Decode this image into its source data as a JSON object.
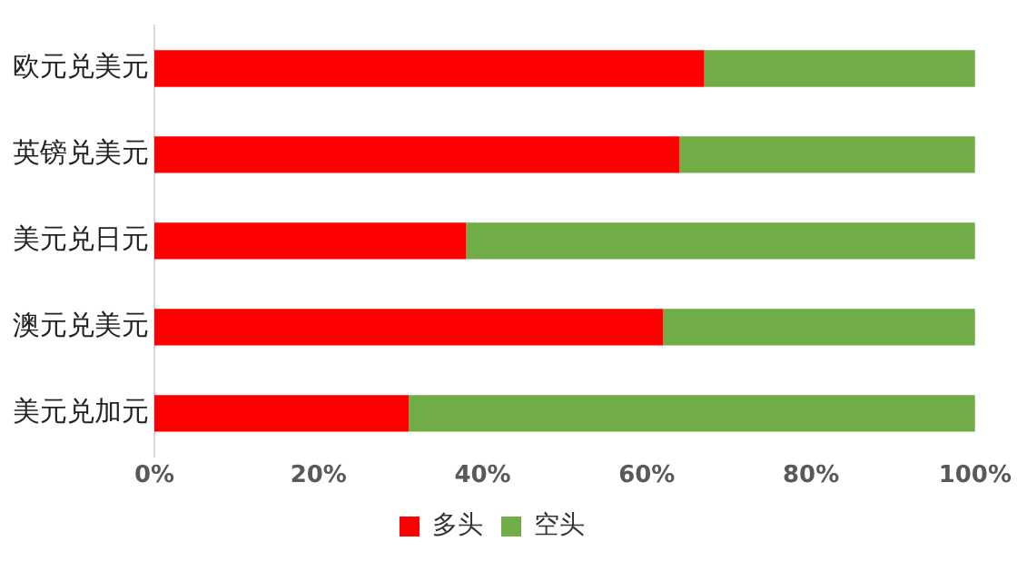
{
  "chart_data": {
    "type": "bar",
    "orientation": "horizontal",
    "stacked": true,
    "categories": [
      "欧元兑美元",
      "英镑兑美元",
      "美元兑日元",
      "澳元兑美元",
      "美元兑加元"
    ],
    "series": [
      {
        "name": "多头",
        "color": "#ff0000",
        "values": [
          67,
          64,
          38,
          62,
          31
        ]
      },
      {
        "name": "空头",
        "color": "#70ad47",
        "values": [
          33,
          36,
          62,
          38,
          69
        ]
      }
    ],
    "xlim": [
      0,
      100
    ],
    "xticks": [
      {
        "value": 0,
        "label": "0%"
      },
      {
        "value": 20,
        "label": "20%"
      },
      {
        "value": 40,
        "label": "40%"
      },
      {
        "value": 60,
        "label": "60%"
      },
      {
        "value": 80,
        "label": "80%"
      },
      {
        "value": 100,
        "label": "100%"
      }
    ],
    "grid": false,
    "legend": "bottom"
  }
}
